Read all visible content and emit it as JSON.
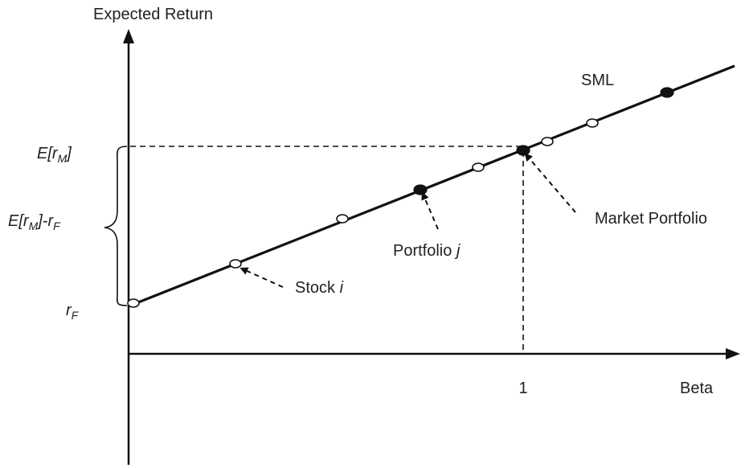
{
  "y_axis_label": "Expected Return",
  "x_axis_label": "Beta",
  "x_tick_label": "1",
  "line_label": "SML",
  "y_labels": {
    "market_return": {
      "prefix": "E[r",
      "sub": "M",
      "suffix": "]"
    },
    "risk_premium": {
      "prefix": "E[r",
      "sub1": "M",
      "middle": "]-r",
      "sub2": "F"
    },
    "risk_free": {
      "main": "r",
      "sub": "F"
    }
  },
  "annotations": {
    "stock": {
      "text": "Stock ",
      "var": "i"
    },
    "portfolio": {
      "text": "Portfolio ",
      "var": "j"
    },
    "market": {
      "text": "Market Portfolio"
    }
  },
  "colors": {
    "ink": "#111111",
    "text": "#222222",
    "background": "#ffffff"
  }
}
